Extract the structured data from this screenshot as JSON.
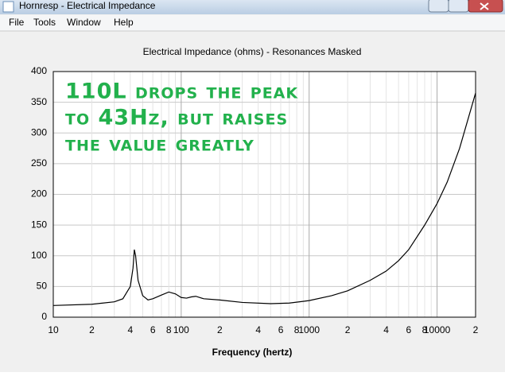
{
  "window": {
    "title": "Hornresp - Electrical Impedance",
    "menu": [
      "File",
      "Tools",
      "Window",
      "Help"
    ]
  },
  "chart_data": {
    "type": "line",
    "title": "Electrical Impedance (ohms) - Resonances Masked",
    "x_label": "Frequency (hertz)",
    "x": [
      10,
      20,
      30,
      35,
      40,
      42,
      43,
      44,
      46,
      50,
      55,
      60,
      70,
      80,
      90,
      100,
      110,
      120,
      130,
      150,
      200,
      300,
      500,
      700,
      1000,
      1500,
      2000,
      3000,
      4000,
      5000,
      6000,
      8000,
      10000,
      12000,
      15000,
      20000
    ],
    "series": [
      {
        "color": "#000000",
        "values": [
          19,
          21,
          25,
          30,
          50,
          80,
          110,
          100,
          60,
          35,
          28,
          30,
          36,
          41,
          38,
          32,
          31,
          33,
          34,
          30,
          28,
          24,
          22,
          23,
          27,
          35,
          43,
          60,
          75,
          92,
          110,
          150,
          185,
          220,
          275,
          365
        ]
      }
    ],
    "xlim": [
      10,
      20000
    ],
    "ylim": [
      0,
      400
    ],
    "log_x": true,
    "grid": true,
    "yticks": [
      0,
      50,
      100,
      150,
      200,
      250,
      300,
      350,
      400
    ],
    "xticks": [
      10,
      {
        "value": 20,
        "label": "2"
      },
      {
        "value": 40,
        "label": "4"
      },
      {
        "value": 60,
        "label": "6"
      },
      {
        "value": 80,
        "label": "8"
      },
      100,
      {
        "value": 200,
        "label": "2"
      },
      {
        "value": 400,
        "label": "4"
      },
      {
        "value": 600,
        "label": "6"
      },
      {
        "value": 800,
        "label": "8"
      },
      1000,
      {
        "value": 2000,
        "label": "2"
      },
      {
        "value": 4000,
        "label": "4"
      },
      {
        "value": 6000,
        "label": "6"
      },
      {
        "value": 8000,
        "label": "8"
      },
      10000,
      {
        "value": 20000,
        "label": "2"
      }
    ],
    "minor_xticks": [
      30,
      50,
      70,
      90,
      300,
      500,
      700,
      900,
      3000,
      5000,
      7000,
      9000
    ],
    "annotation_color": "#22b14c",
    "annotations": [
      "110L drops the peak",
      "to 43Hz, but raises",
      "the value greatly"
    ]
  }
}
